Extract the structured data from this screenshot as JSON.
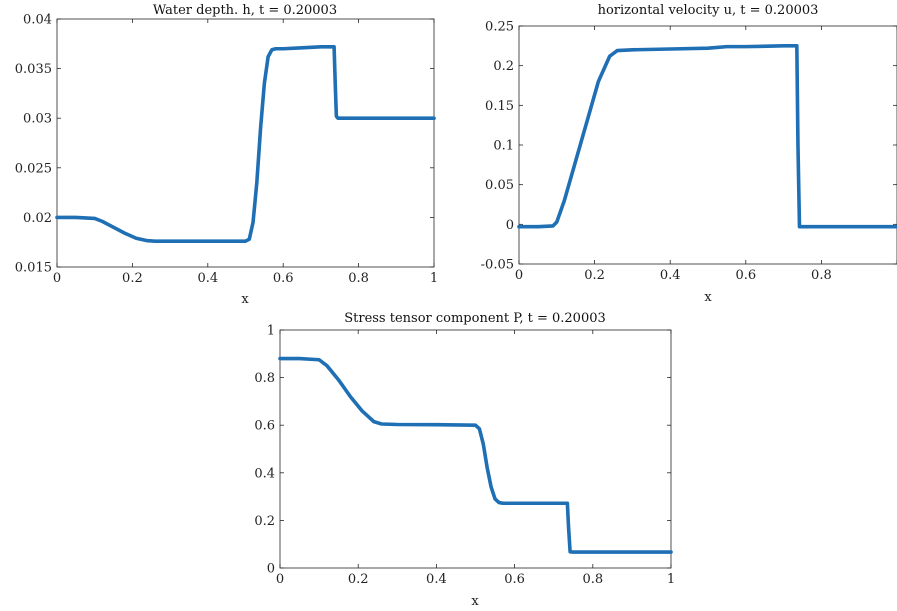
{
  "chart_data": [
    {
      "type": "line",
      "title": "Water depth. h, t = 0.20003",
      "xlabel": "x",
      "ylabel": "",
      "xlim": [
        0,
        1
      ],
      "ylim": [
        0.015,
        0.04
      ],
      "xticks": [
        0,
        0.2,
        0.4,
        0.6,
        0.8,
        1
      ],
      "xtick_labels": [
        "0",
        "0.2",
        "0.4",
        "0.6",
        "0.8",
        "1"
      ],
      "yticks": [
        0.015,
        0.02,
        0.025,
        0.03,
        0.035,
        0.04
      ],
      "ytick_labels": [
        "0.015",
        "0.02",
        "0.025",
        "0.03",
        "0.035",
        "0.04"
      ],
      "grid": false,
      "color": "#1f6fb4",
      "series": [
        {
          "x": [
            0,
            0.05,
            0.1,
            0.12,
            0.15,
            0.18,
            0.21,
            0.24,
            0.26,
            0.3,
            0.4,
            0.5,
            0.51,
            0.52,
            0.53,
            0.54,
            0.55,
            0.56,
            0.57,
            0.58,
            0.6,
            0.65,
            0.7,
            0.735,
            0.738,
            0.741,
            0.745,
            0.8,
            0.9,
            1.0
          ],
          "y": [
            0.02,
            0.02,
            0.0199,
            0.0196,
            0.019,
            0.0184,
            0.0179,
            0.01765,
            0.0176,
            0.0176,
            0.0176,
            0.0176,
            0.0178,
            0.0195,
            0.0235,
            0.029,
            0.0335,
            0.0362,
            0.0369,
            0.037,
            0.037,
            0.0371,
            0.0372,
            0.0372,
            0.0335,
            0.0302,
            0.03,
            0.03,
            0.03,
            0.03
          ]
        }
      ]
    },
    {
      "type": "line",
      "title": "horizontal velocity u, t = 0.20003",
      "xlabel": "x",
      "ylabel": "",
      "xlim": [
        0,
        1
      ],
      "ylim": [
        -0.05,
        0.25
      ],
      "xticks": [
        0,
        0.2,
        0.4,
        0.6,
        0.8,
        1
      ],
      "xtick_labels": [
        "0",
        "0.2",
        "0.4",
        "0.6",
        "0.8",
        ""
      ],
      "yticks": [
        -0.05,
        0,
        0.05,
        0.1,
        0.15,
        0.2,
        0.25
      ],
      "ytick_labels": [
        "-0.05",
        "0",
        "0.05",
        "0.1",
        "0.15",
        "0.2",
        "0.25"
      ],
      "grid": false,
      "color": "#1f6fb4",
      "series": [
        {
          "x": [
            0,
            0.05,
            0.09,
            0.1,
            0.12,
            0.15,
            0.18,
            0.21,
            0.24,
            0.26,
            0.3,
            0.4,
            0.5,
            0.55,
            0.6,
            0.7,
            0.735,
            0.738,
            0.742,
            0.75,
            0.8,
            0.9,
            1.0
          ],
          "y": [
            -0.003,
            -0.003,
            -0.002,
            0.003,
            0.03,
            0.08,
            0.13,
            0.18,
            0.212,
            0.219,
            0.22,
            0.221,
            0.222,
            0.224,
            0.224,
            0.225,
            0.225,
            0.1,
            -0.003,
            -0.003,
            -0.003,
            -0.003,
            -0.003
          ]
        }
      ]
    },
    {
      "type": "line",
      "title": "Stress tensor component P,    t = 0.20003",
      "xlabel": "x",
      "ylabel": "",
      "xlim": [
        0,
        1
      ],
      "ylim": [
        0,
        1
      ],
      "xticks": [
        0,
        0.2,
        0.4,
        0.6,
        0.8,
        1
      ],
      "xtick_labels": [
        "0",
        "0.2",
        "0.4",
        "0.6",
        "0.8",
        "1"
      ],
      "yticks": [
        0,
        0.2,
        0.4,
        0.6,
        0.8,
        1
      ],
      "ytick_labels": [
        "0",
        "0.2",
        "0.4",
        "0.6",
        "0.8",
        "1"
      ],
      "grid": false,
      "color": "#1f6fb4",
      "series": [
        {
          "x": [
            0,
            0.05,
            0.1,
            0.12,
            0.15,
            0.18,
            0.21,
            0.24,
            0.26,
            0.3,
            0.4,
            0.5,
            0.51,
            0.52,
            0.53,
            0.54,
            0.55,
            0.56,
            0.57,
            0.6,
            0.7,
            0.735,
            0.738,
            0.742,
            0.75,
            0.8,
            0.9,
            1.0
          ],
          "y": [
            0.88,
            0.88,
            0.875,
            0.85,
            0.79,
            0.72,
            0.66,
            0.615,
            0.605,
            0.603,
            0.602,
            0.6,
            0.585,
            0.52,
            0.42,
            0.34,
            0.29,
            0.275,
            0.272,
            0.272,
            0.272,
            0.272,
            0.17,
            0.068,
            0.067,
            0.067,
            0.067,
            0.067
          ]
        }
      ]
    }
  ]
}
